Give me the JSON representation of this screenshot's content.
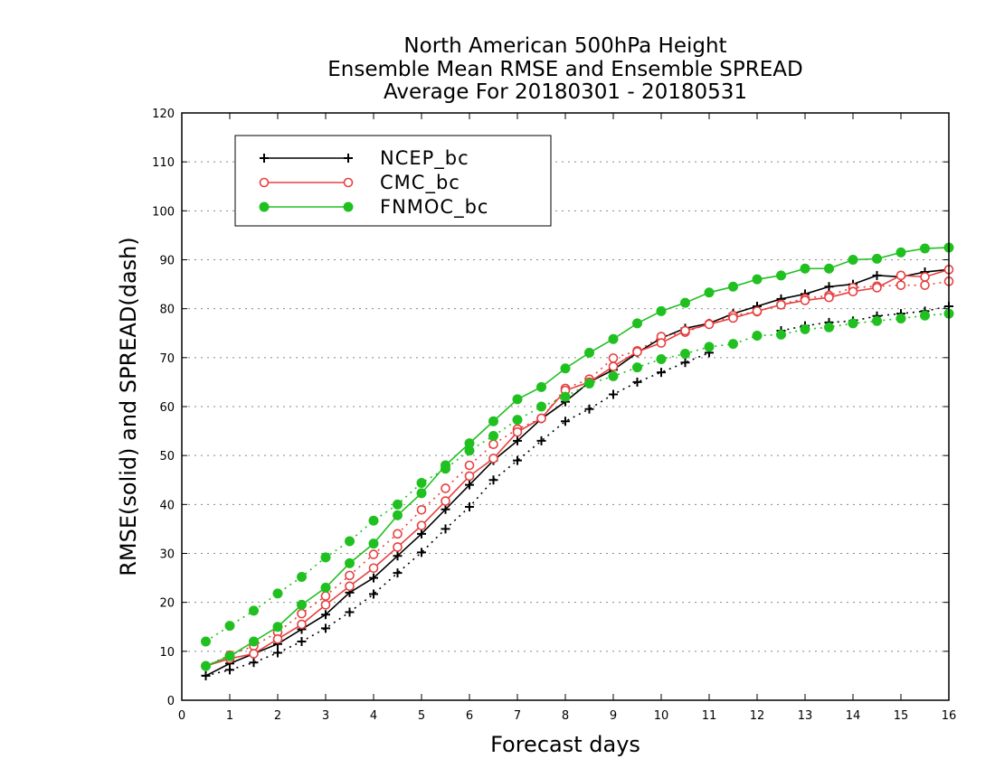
{
  "chart_data": {
    "type": "line",
    "title_lines": [
      "North American 500hPa Height",
      "Ensemble Mean RMSE and Ensemble SPREAD",
      "Average For 20180301 - 20180531"
    ],
    "xlabel": "Forecast days",
    "ylabel": "RMSE(solid) and SPREAD(dash)",
    "xlim": [
      0,
      16
    ],
    "ylim": [
      0,
      120
    ],
    "x_ticks": [
      "0",
      "1",
      "2",
      "3",
      "4",
      "5",
      "6",
      "7",
      "8",
      "9",
      "10",
      "11",
      "12",
      "13",
      "14",
      "15",
      "16"
    ],
    "y_ticks": [
      "0",
      "10",
      "20",
      "30",
      "40",
      "50",
      "60",
      "70",
      "80",
      "90",
      "100",
      "110",
      "120"
    ],
    "grid": "horizontal dotted",
    "legend_position": "top-left",
    "x": [
      0.5,
      1,
      1.5,
      2,
      2.5,
      3,
      3.5,
      4,
      4.5,
      5,
      5.5,
      6,
      6.5,
      7,
      7.5,
      8,
      8.5,
      9,
      9.5,
      10,
      10.5,
      11,
      11.5,
      12,
      12.5,
      13,
      13.5,
      14,
      14.5,
      15,
      15.5,
      16
    ],
    "series": [
      {
        "name": "NCEP_bc",
        "color": "#000000",
        "marker": "plus",
        "rmse": [
          5,
          7.5,
          9.5,
          11.5,
          14.5,
          17.5,
          22,
          25,
          29.5,
          34,
          39,
          44,
          49,
          53,
          57.5,
          61,
          65,
          67.5,
          71,
          74,
          76,
          77,
          79,
          80.5,
          82,
          83,
          84.5,
          85,
          86.8,
          86.5,
          87.5,
          88
        ],
        "spread": [
          5,
          6.2,
          7.7,
          9.7,
          12,
          14.7,
          18,
          21.7,
          26,
          30.2,
          35,
          39.5,
          45,
          49,
          53,
          57,
          59.5,
          62.5,
          65,
          67,
          69,
          71,
          null,
          null,
          75.5,
          76.5,
          77.2,
          77.5,
          78.5,
          79,
          79.5,
          80.5
        ]
      },
      {
        "name": "CMC_bc",
        "color": "#e84040",
        "marker": "open-circle",
        "rmse": [
          7,
          8.5,
          9.5,
          12.5,
          15.5,
          19.5,
          23.3,
          27,
          31.3,
          35.7,
          40.7,
          45.8,
          49.4,
          54.8,
          57.6,
          63.3,
          65,
          68.2,
          71.2,
          73,
          75.5,
          76.8,
          78.1,
          79.5,
          80.8,
          81.7,
          82.3,
          83.5,
          84.3,
          86.8,
          86.5,
          88
        ],
        "spread": [
          7,
          9.2,
          11.1,
          13.9,
          17.7,
          21.3,
          25.5,
          29.8,
          34,
          38.9,
          43.3,
          48,
          52.3,
          55.4,
          57.6,
          63.7,
          65.6,
          69.9,
          71.4,
          74.3,
          75.2,
          76.9,
          78.6,
          79.4,
          80.9,
          82.1,
          82.7,
          84.3,
          84.6,
          84.8,
          84.8,
          85.6
        ]
      },
      {
        "name": "FNMOC_bc",
        "color": "#20c020",
        "marker": "filled-circle",
        "rmse": [
          7,
          9,
          12,
          15,
          19.5,
          23,
          28,
          32,
          37.8,
          42.3,
          48,
          52.5,
          57,
          61.5,
          64,
          67.8,
          71,
          73.8,
          77,
          79.5,
          81.2,
          83.3,
          84.5,
          86,
          86.8,
          88.2,
          88.2,
          90,
          90.2,
          91.5,
          92.3,
          92.5
        ],
        "spread": [
          12,
          15.2,
          18.3,
          21.8,
          25.2,
          29.2,
          32.5,
          36.7,
          40,
          44.4,
          47.3,
          51,
          54,
          57.3,
          60,
          62,
          64.7,
          66.2,
          68,
          69.7,
          70.8,
          72.2,
          72.8,
          74.5,
          74.7,
          75.8,
          76.2,
          77,
          77.5,
          78,
          78.6,
          79
        ]
      }
    ]
  }
}
